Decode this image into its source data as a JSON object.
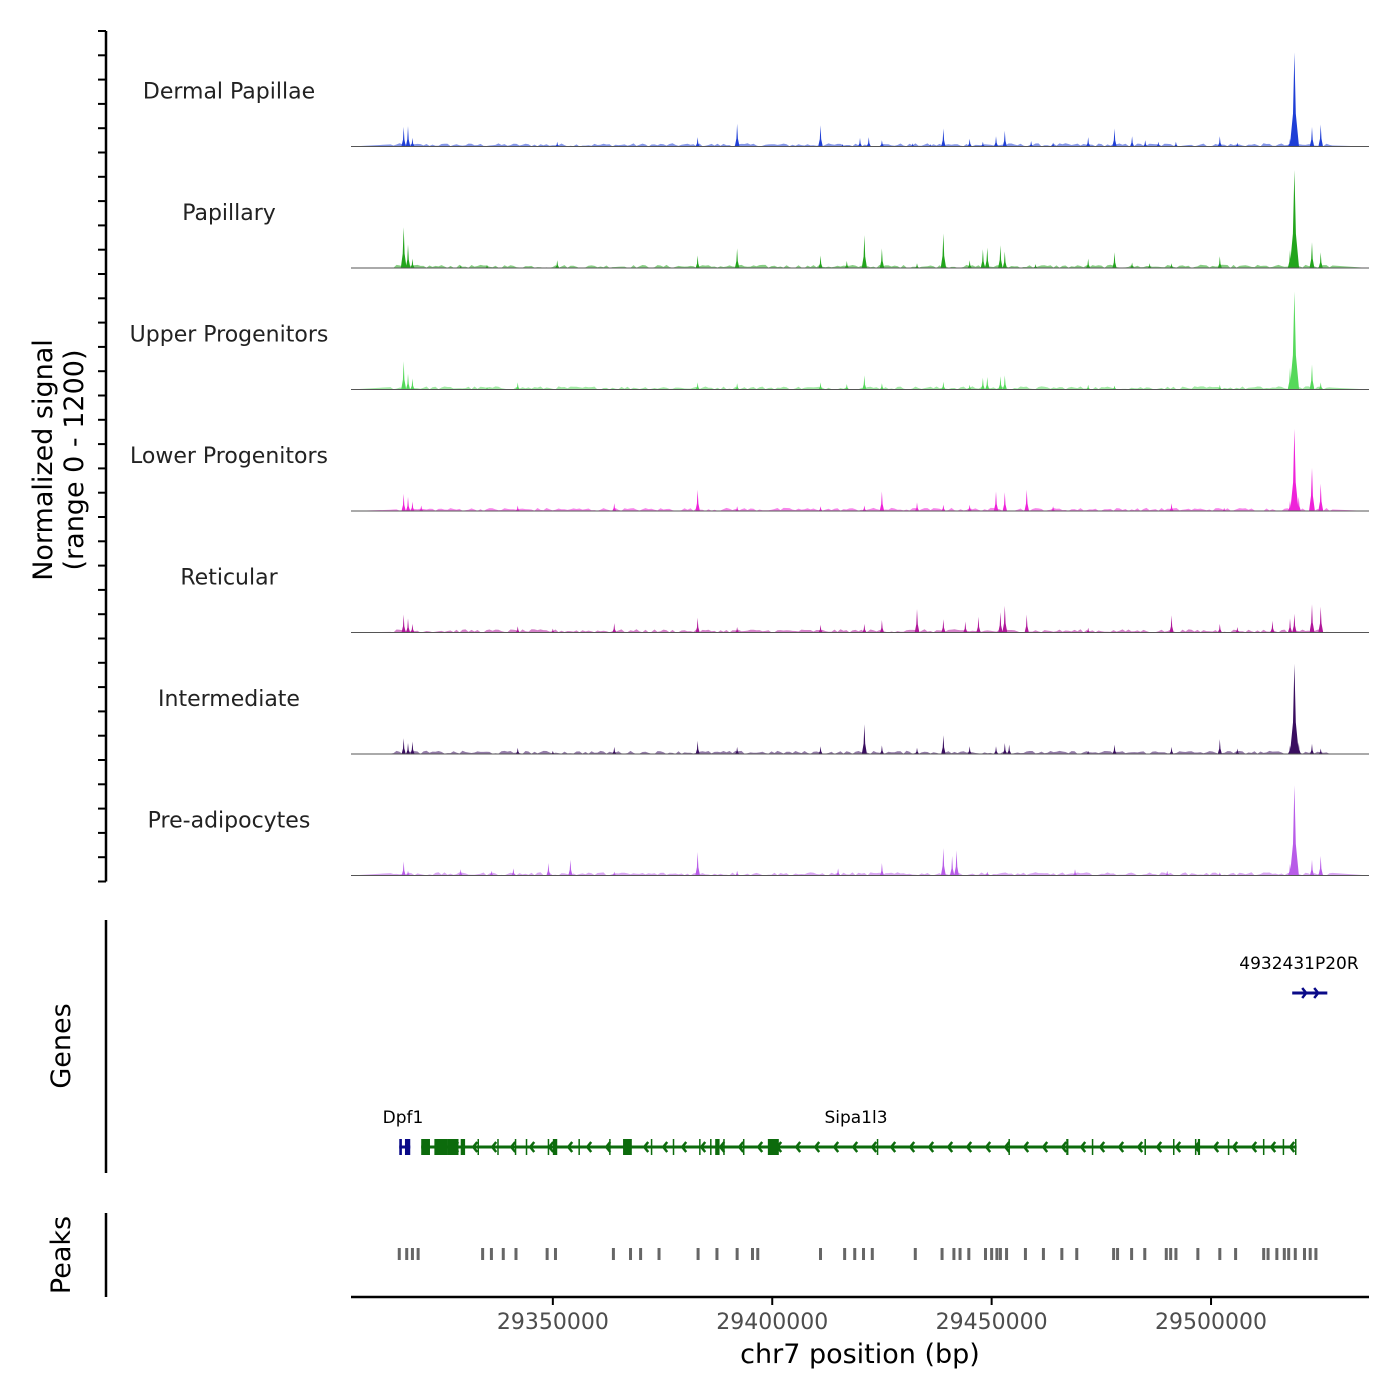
{
  "chart_data": {
    "type": "area",
    "chromosome": "chr7",
    "xlabel": "chr7 position (bp)",
    "ylabel_line1": "Normalized signal",
    "ylabel_line2": "(range 0 - 1200)",
    "y_range": [
      0,
      1200
    ],
    "x_range": [
      29304000,
      29536000
    ],
    "x_ticks": [
      29350000,
      29400000,
      29450000,
      29500000
    ],
    "x_tick_labels": [
      "29350000",
      "29400000",
      "29450000",
      "29500000"
    ],
    "tracks": [
      {
        "name": "Dermal Papillae",
        "color": "#1f3fd6",
        "peaks": [
          [
            29316000,
            250
          ],
          [
            29317000,
            260
          ],
          [
            29318000,
            110
          ],
          [
            29351000,
            60
          ],
          [
            29383000,
            120
          ],
          [
            29392000,
            290
          ],
          [
            29411000,
            270
          ],
          [
            29416000,
            30
          ],
          [
            29420000,
            110
          ],
          [
            29422000,
            120
          ],
          [
            29425000,
            80
          ],
          [
            29432000,
            40
          ],
          [
            29436000,
            30
          ],
          [
            29439000,
            230
          ],
          [
            29445000,
            100
          ],
          [
            29448000,
            60
          ],
          [
            29451000,
            130
          ],
          [
            29453000,
            200
          ],
          [
            29459000,
            70
          ],
          [
            29464000,
            50
          ],
          [
            29472000,
            120
          ],
          [
            29478000,
            230
          ],
          [
            29482000,
            130
          ],
          [
            29485000,
            80
          ],
          [
            29488000,
            60
          ],
          [
            29492000,
            60
          ],
          [
            29502000,
            130
          ],
          [
            29506000,
            50
          ],
          [
            29518000,
            100
          ],
          [
            29519000,
            1200
          ],
          [
            29523000,
            250
          ],
          [
            29525000,
            280
          ]
        ]
      },
      {
        "name": "Papillary",
        "color": "#22a51c",
        "peaks": [
          [
            29316000,
            520
          ],
          [
            29317000,
            300
          ],
          [
            29318000,
            120
          ],
          [
            29329000,
            30
          ],
          [
            29335000,
            40
          ],
          [
            29351000,
            100
          ],
          [
            29383000,
            160
          ],
          [
            29392000,
            250
          ],
          [
            29411000,
            160
          ],
          [
            29417000,
            90
          ],
          [
            29421000,
            420
          ],
          [
            29425000,
            250
          ],
          [
            29433000,
            60
          ],
          [
            29439000,
            440
          ],
          [
            29445000,
            100
          ],
          [
            29448000,
            240
          ],
          [
            29449000,
            260
          ],
          [
            29452000,
            290
          ],
          [
            29453000,
            210
          ],
          [
            29460000,
            50
          ],
          [
            29472000,
            120
          ],
          [
            29478000,
            200
          ],
          [
            29482000,
            70
          ],
          [
            29486000,
            60
          ],
          [
            29491000,
            60
          ],
          [
            29502000,
            150
          ],
          [
            29518000,
            230
          ],
          [
            29519000,
            1250
          ],
          [
            29523000,
            330
          ],
          [
            29525000,
            200
          ]
        ]
      },
      {
        "name": "Upper Progenitors",
        "color": "#55d95a",
        "peaks": [
          [
            29316000,
            360
          ],
          [
            29317000,
            200
          ],
          [
            29318000,
            140
          ],
          [
            29335000,
            30
          ],
          [
            29342000,
            90
          ],
          [
            29383000,
            90
          ],
          [
            29392000,
            80
          ],
          [
            29411000,
            90
          ],
          [
            29417000,
            70
          ],
          [
            29421000,
            180
          ],
          [
            29425000,
            80
          ],
          [
            29439000,
            100
          ],
          [
            29445000,
            60
          ],
          [
            29448000,
            150
          ],
          [
            29449000,
            160
          ],
          [
            29452000,
            170
          ],
          [
            29453000,
            180
          ],
          [
            29472000,
            60
          ],
          [
            29478000,
            50
          ],
          [
            29502000,
            60
          ],
          [
            29518000,
            280
          ],
          [
            29519000,
            1250
          ],
          [
            29523000,
            320
          ],
          [
            29525000,
            90
          ]
        ]
      },
      {
        "name": "Lower Progenitors",
        "color": "#ee22d9",
        "peaks": [
          [
            29316000,
            220
          ],
          [
            29317000,
            180
          ],
          [
            29318000,
            120
          ],
          [
            29320000,
            70
          ],
          [
            29342000,
            70
          ],
          [
            29364000,
            100
          ],
          [
            29383000,
            270
          ],
          [
            29392000,
            60
          ],
          [
            29411000,
            60
          ],
          [
            29421000,
            70
          ],
          [
            29425000,
            250
          ],
          [
            29433000,
            110
          ],
          [
            29439000,
            80
          ],
          [
            29445000,
            80
          ],
          [
            29451000,
            250
          ],
          [
            29453000,
            240
          ],
          [
            29458000,
            270
          ],
          [
            29464000,
            60
          ],
          [
            29491000,
            100
          ],
          [
            29503000,
            40
          ],
          [
            29518000,
            130
          ],
          [
            29519000,
            1050
          ],
          [
            29520000,
            180
          ],
          [
            29523000,
            550
          ],
          [
            29525000,
            350
          ]
        ]
      },
      {
        "name": "Reticular",
        "color": "#b0179a",
        "peaks": [
          [
            29316000,
            230
          ],
          [
            29317000,
            180
          ],
          [
            29318000,
            110
          ],
          [
            29342000,
            80
          ],
          [
            29350000,
            50
          ],
          [
            29364000,
            120
          ],
          [
            29383000,
            190
          ],
          [
            29392000,
            70
          ],
          [
            29411000,
            100
          ],
          [
            29421000,
            110
          ],
          [
            29425000,
            160
          ],
          [
            29433000,
            300
          ],
          [
            29439000,
            170
          ],
          [
            29444000,
            140
          ],
          [
            29447000,
            200
          ],
          [
            29452000,
            260
          ],
          [
            29453000,
            340
          ],
          [
            29458000,
            230
          ],
          [
            29472000,
            60
          ],
          [
            29491000,
            220
          ],
          [
            29502000,
            110
          ],
          [
            29506000,
            70
          ],
          [
            29514000,
            150
          ],
          [
            29518000,
            180
          ],
          [
            29519000,
            240
          ],
          [
            29523000,
            360
          ],
          [
            29525000,
            330
          ]
        ]
      },
      {
        "name": "Intermediate",
        "color": "#3a0e60",
        "peaks": [
          [
            29316000,
            200
          ],
          [
            29317000,
            140
          ],
          [
            29318000,
            160
          ],
          [
            29342000,
            80
          ],
          [
            29350000,
            40
          ],
          [
            29364000,
            90
          ],
          [
            29383000,
            170
          ],
          [
            29392000,
            90
          ],
          [
            29411000,
            100
          ],
          [
            29421000,
            380
          ],
          [
            29425000,
            110
          ],
          [
            29433000,
            80
          ],
          [
            29439000,
            240
          ],
          [
            29445000,
            100
          ],
          [
            29451000,
            100
          ],
          [
            29453000,
            140
          ],
          [
            29454000,
            120
          ],
          [
            29472000,
            40
          ],
          [
            29478000,
            120
          ],
          [
            29491000,
            90
          ],
          [
            29502000,
            190
          ],
          [
            29506000,
            70
          ],
          [
            29518000,
            110
          ],
          [
            29519000,
            1150
          ],
          [
            29520000,
            150
          ],
          [
            29523000,
            130
          ],
          [
            29525000,
            70
          ]
        ]
      },
      {
        "name": "Pre-adipocytes",
        "color": "#b85ce8",
        "peaks": [
          [
            29316000,
            180
          ],
          [
            29317000,
            60
          ],
          [
            29329000,
            80
          ],
          [
            29336000,
            60
          ],
          [
            29341000,
            90
          ],
          [
            29349000,
            160
          ],
          [
            29354000,
            200
          ],
          [
            29364000,
            50
          ],
          [
            29383000,
            300
          ],
          [
            29392000,
            60
          ],
          [
            29415000,
            90
          ],
          [
            29425000,
            160
          ],
          [
            29439000,
            350
          ],
          [
            29441000,
            250
          ],
          [
            29442000,
            320
          ],
          [
            29449000,
            50
          ],
          [
            29469000,
            80
          ],
          [
            29490000,
            60
          ],
          [
            29502000,
            40
          ],
          [
            29518000,
            150
          ],
          [
            29519000,
            1150
          ],
          [
            29523000,
            200
          ],
          [
            29525000,
            250
          ]
        ]
      }
    ],
    "genes_label": "Genes",
    "genes": [
      {
        "name": "Dpf1",
        "color": "#0a0a88",
        "start": 29315000,
        "end": 29317500,
        "strand": "+",
        "exons": [
          [
            29315000,
            29315600
          ],
          [
            29316300,
            29317500
          ]
        ]
      },
      {
        "name": "Sipa1l3",
        "color": "#0c6b0c",
        "start": 29320000,
        "end": 29519500,
        "strand": "-",
        "exons": [
          [
            29320000,
            29322000
          ],
          [
            29323000,
            29326000
          ],
          [
            29326000,
            29328500
          ],
          [
            29329000,
            29330000
          ],
          [
            29350000,
            29351000
          ],
          [
            29366000,
            29368000
          ],
          [
            29387000,
            29388000
          ],
          [
            29399000,
            29401500
          ],
          [
            29467000,
            29467500
          ],
          [
            29497000,
            29497500
          ]
        ]
      },
      {
        "name": "4932431P20R",
        "color": "#0a0a88",
        "start": 29518500,
        "end": 29526500,
        "strand": "+",
        "exons": []
      }
    ],
    "peaks_label": "Peaks",
    "peak_color": "#666666",
    "peak_positions": [
      29315000,
      29316700,
      29318000,
      29319300,
      29334000,
      29336000,
      29338700,
      29341600,
      29348700,
      29350600,
      29363800,
      29367700,
      29370000,
      29374200,
      29383100,
      29387400,
      29392000,
      29395500,
      29396700,
      29411000,
      29416500,
      29418800,
      29420800,
      29422800,
      29432600,
      29438700,
      29441400,
      29442800,
      29444800,
      29448600,
      29450000,
      29451200,
      29452000,
      29453400,
      29457700,
      29461800,
      29466000,
      29469400,
      29477800,
      29478700,
      29481900,
      29484900,
      29489800,
      29490800,
      29492000,
      29497000,
      29502000,
      29505600,
      29512000,
      29513000,
      29515000,
      29516700,
      29517700,
      29519200,
      29521300,
      29522600,
      29523900
    ]
  }
}
